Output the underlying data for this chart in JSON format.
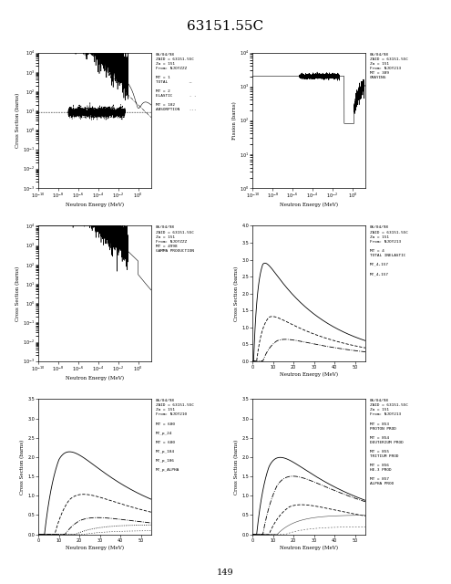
{
  "title": "63151.55C",
  "page_number": "149",
  "bg": "#ffffff",
  "annotations": [
    "06/04/98\nZAID = 63151.55C\nZa = 151\nFrom: NJOYZZZ\n\nMT = 1\nTOTAL         —\n\nMT = 2\nELASTIC       - -\n\nMT = 102\nABSORPTION    -.-",
    "06/04/98\nZAID = 63151.55C\nZa = 151\nFrom: NJOY213\nMT = 309\nGRAYING",
    "06/04/98\nZAID = 63151.55C\nZa = 151\nFrom: NJOYZZZ\nMT = 4998\nGAMMA PRODUCTION",
    "06/04/98\nZAID = 63151.55C\nZa = 151\nFrom: NJOY213\n\nMT = 4\nTOTAL INELASTIC\n\nMT_4,157\n\nMT_4,157",
    "06/04/98\nZAID = 63151.55C\nZa = 151\nFrom: NJOY210\n\nMT = 600\n\nMT_p_24\n\nMT = 600\n\nMT_p_104\n\nMT_p_106\n\nMT_p_ALPHA",
    "06/04/98\nZAID = 63151.55C\nZa = 151\nFrom: NJOY213\n\nMT = 853\nPROTON PROD\n\nMT = 854\nDEUTERIUM PROD\n\nMT = 855\nTRITIUM PROD\n\nMT = 856\nHE-3 PROD\n\nMT = 857\nALPHA PROD"
  ],
  "ylabels": [
    "Cross Section (barns)",
    "Fission (barns)",
    "Cross Section (barns)",
    "Cross Section (barns)",
    "Cross Section (barns)",
    "Cross Section (barns)"
  ],
  "xlabel": "Neutron Energy (MeV)"
}
